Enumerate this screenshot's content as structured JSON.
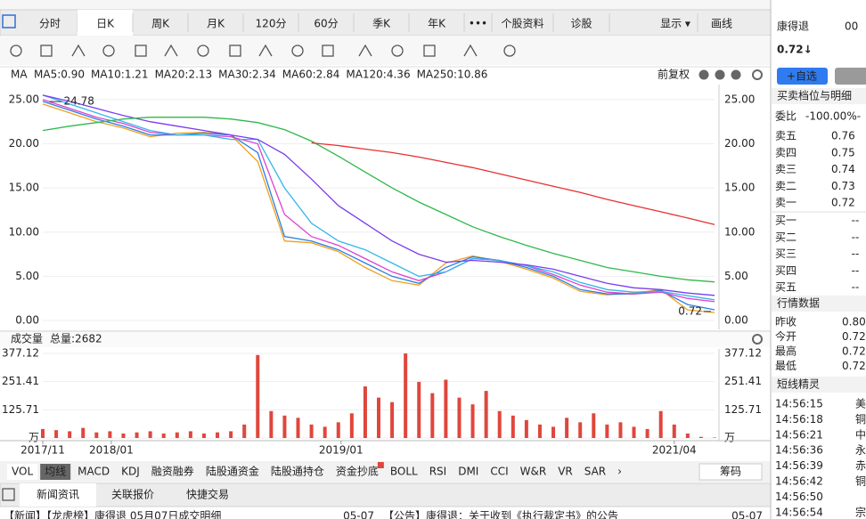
{
  "tabs": [
    "分时",
    "日K",
    "周K",
    "月K",
    "120分",
    "60分",
    "季K",
    "年K",
    "•••",
    "个股资料",
    "诊股"
  ],
  "tabs_right": [
    "显示 ▾",
    "画线"
  ],
  "ma_label": "MA",
  "adjust": "前复权",
  "chart_data": [
    {
      "type": "line",
      "x": [
        0,
        4,
        8,
        12,
        16,
        20,
        24,
        28,
        32,
        36,
        40,
        44,
        48,
        52,
        56,
        60,
        64,
        68,
        72,
        76,
        80,
        84,
        88,
        92,
        96,
        100
      ],
      "xlim": [
        0,
        100
      ],
      "ylim": [
        0,
        26.4
      ],
      "yticks": [
        {
          "value": 25,
          "label": "25.00"
        },
        {
          "value": 20,
          "label": "20.00"
        },
        {
          "value": 15,
          "label": "15.00"
        },
        {
          "value": 10,
          "label": "10.00"
        },
        {
          "value": 5,
          "label": "5.00"
        },
        {
          "value": 0,
          "label": "0.00"
        }
      ],
      "grid": true,
      "annotations": [
        {
          "x": 1,
          "y": 24.78
        },
        {
          "x": 100,
          "y": 0.72
        }
      ],
      "series": [
        {
          "name": "MA5:0.90",
          "color": "#f0a020",
          "values": [
            24.5,
            23.5,
            22.5,
            21.8,
            20.8,
            21.2,
            21.3,
            21,
            18,
            9,
            8.8,
            7.8,
            6,
            4.5,
            4,
            6.5,
            7.3,
            6.7,
            5.8,
            4.8,
            3.3,
            2.9,
            3.1,
            3.5,
            1.2,
            0.9
          ]
        },
        {
          "name": "MA10:1.21",
          "color": "#2a7fe0",
          "values": [
            24.8,
            23.8,
            22.8,
            22,
            21,
            21,
            21.2,
            21,
            19,
            9.5,
            9,
            8,
            6.5,
            5,
            4.2,
            6,
            7.2,
            6.8,
            6,
            5,
            3.5,
            3,
            3,
            3.4,
            1.8,
            1.21
          ]
        },
        {
          "name": "MA20:2.13",
          "color": "#e040d0",
          "values": [
            25,
            24,
            23,
            22.3,
            21.3,
            21,
            21,
            20.8,
            20,
            12,
            9.5,
            8.5,
            7,
            5.5,
            4.5,
            5.5,
            7,
            6.8,
            6.2,
            5.2,
            4,
            3.2,
            3,
            3.2,
            2.5,
            2.13
          ]
        },
        {
          "name": "MA30:2.34",
          "color": "#30b8e8",
          "values": [
            25.5,
            24.5,
            23.5,
            22.5,
            21.5,
            21,
            21,
            20.5,
            20.5,
            15,
            11,
            9,
            8,
            6.5,
            5,
            5.5,
            7,
            6.8,
            6.2,
            5.5,
            4.3,
            3.5,
            3.2,
            3.3,
            2.8,
            2.34
          ]
        },
        {
          "name": "MA60:2.84",
          "color": "#7a3cf0",
          "values": [
            25.5,
            24.8,
            24,
            23.2,
            22.5,
            22,
            21.5,
            21,
            20.5,
            18.8,
            16,
            13,
            11,
            9,
            7.5,
            6.6,
            6.8,
            6.6,
            6.3,
            5.8,
            5,
            4.2,
            3.7,
            3.5,
            3.1,
            2.84
          ]
        },
        {
          "name": "MA120:4.36",
          "color": "#2fb84a",
          "values": [
            21.5,
            22,
            22.4,
            22.8,
            23,
            23,
            23,
            22.8,
            22.4,
            21.6,
            20.3,
            18.6,
            16.8,
            15,
            13.4,
            12,
            10.6,
            9.5,
            8.5,
            7.6,
            6.8,
            6,
            5.5,
            5,
            4.6,
            4.36
          ]
        },
        {
          "name": "MA250:10.86",
          "color": "#e83030",
          "values": [
            null,
            null,
            null,
            null,
            null,
            null,
            null,
            null,
            null,
            null,
            20.1,
            19.8,
            19.4,
            19,
            18.5,
            17.9,
            17.3,
            16.6,
            15.9,
            15.2,
            14.5,
            13.7,
            13,
            12.3,
            11.6,
            10.86
          ]
        }
      ]
    },
    {
      "type": "bar",
      "title": "成交量",
      "subtitle": "总量:2682",
      "x": [
        0,
        2,
        4,
        6,
        8,
        10,
        12,
        14,
        16,
        18,
        20,
        22,
        24,
        26,
        28,
        30,
        32,
        34,
        36,
        38,
        40,
        42,
        44,
        46,
        48,
        50,
        52,
        54,
        56,
        58,
        60,
        62,
        64,
        66,
        68,
        70,
        72,
        74,
        76,
        78,
        80,
        82,
        84,
        86,
        88,
        90,
        92,
        94,
        96,
        98,
        100
      ],
      "values": [
        40,
        35,
        30,
        45,
        25,
        30,
        20,
        25,
        30,
        20,
        25,
        30,
        20,
        25,
        30,
        60,
        370,
        120,
        100,
        90,
        60,
        50,
        70,
        110,
        230,
        180,
        160,
        377,
        250,
        200,
        260,
        180,
        150,
        210,
        120,
        100,
        80,
        60,
        50,
        90,
        70,
        110,
        60,
        70,
        50,
        40,
        120,
        60,
        20,
        5,
        2
      ],
      "color": "#e0463c",
      "xlim": [
        0,
        100
      ],
      "ylim": [
        0,
        377.12
      ],
      "yticks": [
        377.12,
        251.41,
        125.71,
        {
          "value": 0,
          "label": "万"
        }
      ],
      "xticks": [
        {
          "value": 0,
          "label": "2017/11"
        },
        {
          "value": 10.2,
          "label": "2018/01"
        },
        {
          "value": 44.4,
          "label": "2019/01"
        },
        {
          "value": 94,
          "label": "2021/04"
        }
      ],
      "grid": true
    }
  ],
  "indicators": [
    "VOL",
    "均线",
    "MACD",
    "KDJ",
    "融资融券",
    "陆股通资金",
    "陆股通持仓",
    "资金抄底",
    "BOLL",
    "RSI",
    "DMI",
    "CCI",
    "W&R",
    "VR",
    "SAR",
    "›"
  ],
  "chips": "筹码",
  "bottom_tabs": [
    "新闻资讯",
    "关联报价",
    "快捷交易"
  ],
  "news": [
    {
      "text": "【新闻】【龙虎榜】康得退 05月07日成交明细",
      "date": "05-07"
    },
    {
      "text": "【公告】康得退：关于收到《执行裁定书》的公告",
      "date": "05-07"
    }
  ],
  "quote": {
    "name": "康得退",
    "code": "00",
    "price": "0.72↓",
    "add_button": "+自选",
    "book_title": "买卖档位与明细",
    "ratio_label": "委比",
    "ratio": "-100.00%-",
    "book": [
      [
        "卖五",
        "0.76"
      ],
      [
        "卖四",
        "0.75"
      ],
      [
        "卖三",
        "0.74"
      ],
      [
        "卖二",
        "0.73"
      ],
      [
        "卖一",
        "0.72"
      ],
      [
        "买一",
        "--"
      ],
      [
        "买二",
        "--"
      ],
      [
        "买三",
        "--"
      ],
      [
        "买四",
        "--"
      ],
      [
        "买五",
        "--"
      ]
    ],
    "market_title": "行情数据",
    "market": [
      [
        "昨收",
        "0.80"
      ],
      [
        "今开",
        "0.72"
      ],
      [
        "最高",
        "0.72"
      ],
      [
        "最低",
        "0.72"
      ]
    ],
    "sprite_title": "短线精灵",
    "sprite": [
      [
        "14:56:15",
        "美"
      ],
      [
        "14:56:18",
        "铜"
      ],
      [
        "14:56:21",
        "中"
      ],
      [
        "14:56:36",
        "永"
      ],
      [
        "14:56:39",
        "赤"
      ],
      [
        "14:56:42",
        "铜"
      ],
      [
        "14:56:50",
        ""
      ],
      [
        "14:56:54",
        "宗"
      ]
    ]
  }
}
